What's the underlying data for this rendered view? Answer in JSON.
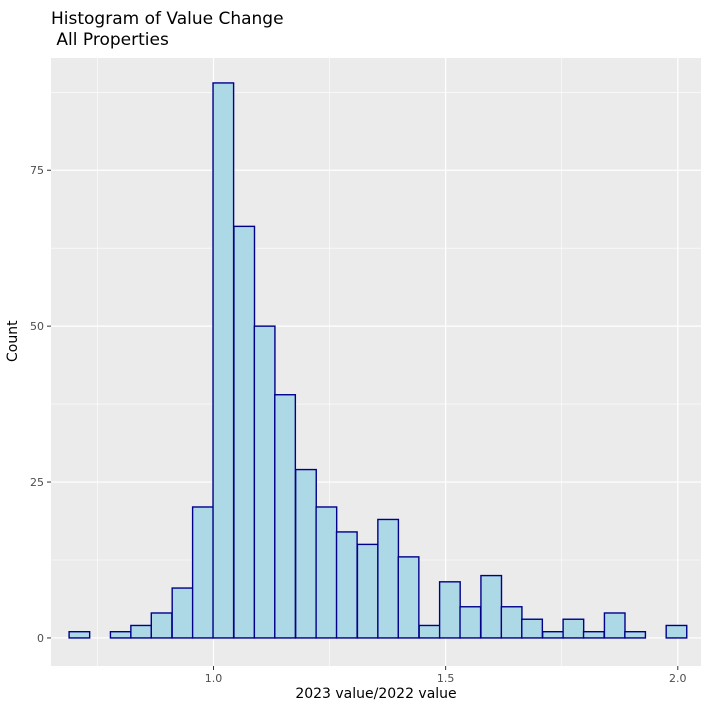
{
  "chart_data": {
    "type": "bar",
    "title": "Histogram of Value Change\n All Properties",
    "xlabel": "2023 value/2022 value",
    "ylabel": "Count",
    "xlim": [
      0.65,
      2.05
    ],
    "ylim": [
      -4.5,
      93
    ],
    "x_ticks": [
      1.0,
      1.5,
      2.0
    ],
    "x_tick_labels": [
      "1.0",
      "1.5",
      "2.0"
    ],
    "y_ticks": [
      0,
      25,
      50,
      75
    ],
    "y_tick_labels": [
      "0",
      "25",
      "50",
      "75"
    ],
    "bin_width": 0.0443,
    "bins": [
      {
        "x0": 0.689,
        "count": 1
      },
      {
        "x0": 0.733,
        "count": 0
      },
      {
        "x0": 0.778,
        "count": 1
      },
      {
        "x0": 0.822,
        "count": 2
      },
      {
        "x0": 0.866,
        "count": 4
      },
      {
        "x0": 0.911,
        "count": 8
      },
      {
        "x0": 0.955,
        "count": 21
      },
      {
        "x0": 0.999,
        "count": 89
      },
      {
        "x0": 1.044,
        "count": 66
      },
      {
        "x0": 1.088,
        "count": 50
      },
      {
        "x0": 1.132,
        "count": 39
      },
      {
        "x0": 1.177,
        "count": 27
      },
      {
        "x0": 1.221,
        "count": 21
      },
      {
        "x0": 1.265,
        "count": 17
      },
      {
        "x0": 1.31,
        "count": 15
      },
      {
        "x0": 1.354,
        "count": 19
      },
      {
        "x0": 1.398,
        "count": 13
      },
      {
        "x0": 1.443,
        "count": 2
      },
      {
        "x0": 1.487,
        "count": 9
      },
      {
        "x0": 1.531,
        "count": 5
      },
      {
        "x0": 1.576,
        "count": 10
      },
      {
        "x0": 1.62,
        "count": 5
      },
      {
        "x0": 1.664,
        "count": 3
      },
      {
        "x0": 1.709,
        "count": 1
      },
      {
        "x0": 1.753,
        "count": 3
      },
      {
        "x0": 1.797,
        "count": 1
      },
      {
        "x0": 1.842,
        "count": 4
      },
      {
        "x0": 1.886,
        "count": 1
      },
      {
        "x0": 1.93,
        "count": 0
      },
      {
        "x0": 1.975,
        "count": 2
      }
    ],
    "grid": true,
    "legend": "none"
  },
  "colors": {
    "panel_background": "#ebebeb",
    "grid_major": "#ffffff",
    "bar_fill": "#add8e6",
    "bar_outline": "#00008b",
    "tick_color": "#333333"
  }
}
